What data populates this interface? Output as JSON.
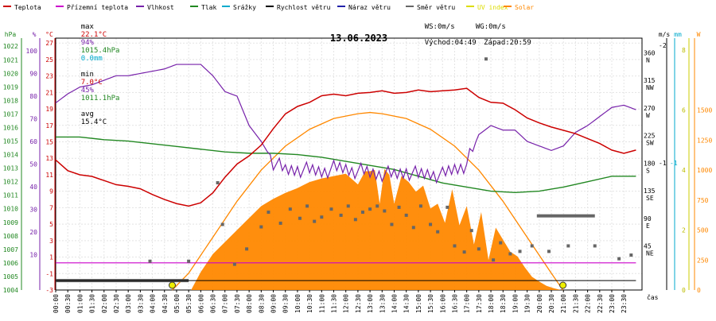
{
  "legend": [
    {
      "label": "Teplota",
      "color": "#cc0000"
    },
    {
      "label": "Přízemní teplota",
      "color": "#cc00cc"
    },
    {
      "label": "Vlhkost",
      "color": "#7722aa"
    },
    {
      "label": "Tlak",
      "color": "#228822"
    },
    {
      "label": "Srážky",
      "color": "#00aacc"
    },
    {
      "label": "Rychlost větru",
      "color": "#000000"
    },
    {
      "label": "Náraz větru",
      "color": "#2222aa"
    },
    {
      "label": "Směr větru",
      "color": "#666666"
    },
    {
      "label": "UV index",
      "color": "#dddd00"
    },
    {
      "label": "Solar",
      "color": "#ff8800"
    }
  ],
  "stats": {
    "max_label": "max",
    "min_label": "min",
    "avg_label": "avg",
    "max_temp": "22.1°C",
    "max_hum": "94%",
    "max_press": "1015.4hPa",
    "max_rain": "0.0mm",
    "min_temp": "7.0°C",
    "min_hum": "45%",
    "min_press": "1011.1hPa",
    "avg_temp": "15.4°C"
  },
  "wind": {
    "ws": "WS:0m/s",
    "wg": "WG:0m/s",
    "sunrise": "Východ:04:49",
    "sunset": "Západ:20:59"
  },
  "colors": {
    "temp": "#cc0000",
    "ground": "#cc00cc",
    "hum": "#7722aa",
    "press": "#228822",
    "rain": "#00aacc",
    "wind": "#000000",
    "gust": "#2222aa",
    "dir": "#666666",
    "uv": "#dddd00",
    "solar": "#ff8800"
  },
  "chart_data": {
    "type": "line",
    "title": "13.06.2023",
    "xlabel": "čas",
    "x_ticks": [
      "00:00",
      "00:30",
      "01:00",
      "01:30",
      "02:00",
      "02:30",
      "03:00",
      "03:30",
      "04:00",
      "04:30",
      "05:00",
      "05:30",
      "06:00",
      "06:30",
      "07:00",
      "07:30",
      "08:00",
      "08:30",
      "09:00",
      "09:30",
      "10:00",
      "10:30",
      "11:00",
      "11:30",
      "12:00",
      "12:30",
      "13:00",
      "13:30",
      "14:00",
      "14:30",
      "15:00",
      "15:30",
      "16:00",
      "16:30",
      "17:00",
      "17:30",
      "18:00",
      "18:30",
      "19:00",
      "19:30",
      "20:00",
      "20:30",
      "21:00",
      "21:30",
      "22:00",
      "22:30",
      "23:00",
      "23:30"
    ],
    "axes": {
      "hpa": {
        "label": "hPa",
        "ticks": [
          "1022",
          "1021",
          "1020",
          "1019",
          "1018",
          "1017",
          "1016",
          "1015",
          "1014",
          "1013",
          "1012",
          "1011",
          "1010",
          "1009",
          "1008",
          "1007",
          "1006",
          "1005",
          "1004"
        ],
        "range": [
          1004,
          1022.6
        ]
      },
      "pct": {
        "label": "%",
        "ticks": [
          "100",
          "90",
          "80",
          "70",
          "60",
          "50",
          "40",
          "30",
          "20",
          "10"
        ],
        "range": [
          -5.6,
          105.6
        ]
      },
      "celsius": {
        "label": "°C",
        "ticks": [
          "27",
          "25",
          "23",
          "21",
          "19",
          "17",
          "15",
          "13",
          "11",
          "9",
          "7",
          "5",
          "3",
          "1",
          "-1",
          "-3"
        ],
        "range": [
          -3,
          27.6
        ]
      },
      "direction": {
        "label": "°",
        "ticks": [
          "360",
          "315",
          "270",
          "225",
          "180",
          "135",
          "90",
          "45"
        ],
        "compass": [
          "N",
          "NW",
          "W",
          "SW",
          "S",
          "SE",
          "E",
          "NE"
        ],
        "range": [
          -27,
          384
        ]
      },
      "ms": {
        "label": "m/s",
        "ticks": [
          "2",
          "1"
        ],
        "range": [
          -0.08,
          2.06
        ]
      },
      "mm": {
        "label": "mm",
        "ticks": [
          "1"
        ],
        "range": [
          -0.08,
          2.06
        ]
      },
      "uv": {
        "label": "W",
        "ticks": [
          "8",
          "6",
          "4",
          "2",
          "0"
        ],
        "range": [
          0,
          8.4
        ]
      },
      "solar": {
        "label": "",
        "ticks": [
          "1500",
          "1250",
          "1000",
          "750",
          "500",
          "250",
          "0"
        ],
        "range": [
          0,
          2100
        ]
      }
    },
    "x_range": [
      0,
      24.25
    ],
    "series": [
      {
        "name": "Teplota",
        "axis": "celsius",
        "x": [
          0,
          0.5,
          1,
          1.5,
          2,
          2.5,
          3,
          3.5,
          4,
          4.5,
          5,
          5.5,
          6,
          6.5,
          7,
          7.5,
          8,
          8.5,
          9,
          9.5,
          10,
          10.5,
          11,
          11.5,
          12,
          12.5,
          13,
          13.5,
          14,
          14.5,
          15,
          15.5,
          16,
          16.5,
          17,
          17.5,
          18,
          18.5,
          19,
          19.5,
          20,
          20.5,
          21,
          21.5,
          22,
          22.5,
          23,
          23.5,
          24
        ],
        "y": [
          12.8,
          11.5,
          11.0,
          10.8,
          10.3,
          9.8,
          9.6,
          9.3,
          8.6,
          8.0,
          7.5,
          7.2,
          7.6,
          8.8,
          10.7,
          12.3,
          13.3,
          14.6,
          16.6,
          18.4,
          19.3,
          19.8,
          20.6,
          20.8,
          20.6,
          20.9,
          21.0,
          21.2,
          20.9,
          21.0,
          21.3,
          21.1,
          21.2,
          21.3,
          21.5,
          20.4,
          19.8,
          19.7,
          18.9,
          17.9,
          17.3,
          16.8,
          16.4,
          16.0,
          15.4,
          14.8,
          14.0,
          13.6,
          14.0
        ]
      },
      {
        "name": "Vlhkost",
        "axis": "pct",
        "x": [
          0,
          0.5,
          1,
          1.5,
          2,
          2.5,
          3,
          3.5,
          4,
          4.5,
          5,
          5.5,
          6,
          6.5,
          7,
          7.5,
          8,
          8.5,
          9,
          9.5,
          10,
          10.5,
          11,
          11.5,
          12,
          12.5,
          13,
          13.5,
          14,
          14.5,
          15,
          15.5,
          16,
          16.5,
          17,
          17.5,
          18,
          18.5,
          19,
          19.5,
          20,
          20.5,
          21,
          21.5,
          22,
          22.5,
          23,
          23.5,
          24
        ],
        "y": [
          77,
          81,
          84,
          85,
          87,
          89,
          89,
          90,
          91,
          92,
          94,
          94,
          94,
          89,
          82,
          80,
          67,
          60,
          51,
          47,
          48,
          47,
          47,
          48,
          48,
          47,
          46,
          46,
          45,
          47,
          45,
          46,
          45,
          48,
          50,
          63,
          67,
          65,
          65,
          60,
          58,
          56,
          58,
          64,
          67,
          71,
          75,
          76,
          74
        ]
      },
      {
        "name": "Tlak",
        "axis": "hpa",
        "x": [
          0,
          1,
          2,
          3,
          4,
          5,
          6,
          7,
          8,
          9,
          10,
          11,
          12,
          13,
          14,
          15,
          16,
          17,
          18,
          19,
          20,
          21,
          22,
          23,
          24
        ],
        "y": [
          1015.3,
          1015.3,
          1015.1,
          1015.0,
          1014.8,
          1014.6,
          1014.4,
          1014.2,
          1014.1,
          1014.1,
          1014.0,
          1013.8,
          1013.5,
          1013.2,
          1012.9,
          1012.4,
          1011.9,
          1011.6,
          1011.3,
          1011.2,
          1011.3,
          1011.6,
          1012.0,
          1012.4,
          1012.4
        ]
      },
      {
        "name": "Přízemní teplota",
        "axis": "celsius",
        "x": [
          0,
          24
        ],
        "y": [
          0.3,
          0.3
        ]
      },
      {
        "name": "Směr větru",
        "axis": "direction",
        "x": [
          3.9,
          5.5,
          6.7,
          6.9,
          7.4,
          7.9,
          8.5,
          8.8,
          9.3,
          9.7,
          10.1,
          10.4,
          10.7,
          11.0,
          11.4,
          11.8,
          12.1,
          12.4,
          12.7,
          13.0,
          13.3,
          13.6,
          13.9,
          14.2,
          14.5,
          14.8,
          15.1,
          15.5,
          15.8,
          16.2,
          16.5,
          16.9,
          17.2,
          17.5,
          17.8,
          18.1,
          18.4,
          18.8,
          19.2,
          19.7,
          20.4,
          21.2,
          22.3,
          23.3,
          23.8
        ],
        "y": [
          20,
          20,
          148,
          80,
          15,
          40,
          76,
          100,
          82,
          105,
          90,
          110,
          85,
          92,
          105,
          95,
          110,
          88,
          100,
          105,
          110,
          102,
          80,
          108,
          95,
          75,
          110,
          80,
          68,
          108,
          45,
          35,
          70,
          40,
          350,
          22,
          50,
          32,
          36,
          45,
          36,
          45,
          45,
          24,
          30
        ]
      },
      {
        "name": "Rychlost větru",
        "axis": "ms",
        "x": [
          0,
          2,
          4,
          5.5,
          6,
          6.5,
          7,
          8,
          9,
          10,
          11,
          12,
          13,
          14,
          15,
          16,
          17,
          18,
          19,
          20,
          21,
          22,
          23,
          24
        ],
        "y": [
          0,
          0,
          0,
          0,
          0,
          0,
          0,
          0,
          0,
          0,
          0,
          0,
          0,
          0,
          0,
          0,
          0,
          0,
          0,
          0,
          0,
          0,
          0,
          0
        ]
      },
      {
        "name": "Solar",
        "axis": "solar",
        "x": [
          5.6,
          6.0,
          6.5,
          7.0,
          7.5,
          8.0,
          8.5,
          9.0,
          9.5,
          10.0,
          10.5,
          11.0,
          11.5,
          12.0,
          12.5,
          12.8,
          13.0,
          13.2,
          13.4,
          13.6,
          13.8,
          14.0,
          14.3,
          14.6,
          14.9,
          15.2,
          15.5,
          15.8,
          16.1,
          16.4,
          16.7,
          17.0,
          17.3,
          17.6,
          17.9,
          18.2,
          18.5,
          18.8,
          19.1,
          19.4,
          19.7,
          20.0,
          20.3,
          20.6,
          20.9
        ],
        "y": [
          0,
          150,
          300,
          400,
          500,
          600,
          700,
          760,
          810,
          850,
          900,
          930,
          950,
          970,
          880,
          990,
          990,
          1000,
          720,
          1010,
          960,
          720,
          950,
          900,
          820,
          870,
          680,
          720,
          560,
          840,
          540,
          700,
          380,
          650,
          250,
          520,
          420,
          320,
          280,
          190,
          110,
          70,
          35,
          15,
          0
        ]
      },
      {
        "name": "Solar (clear sky)",
        "axis": "solar",
        "x": [
          4.82,
          5.5,
          6.5,
          7.5,
          8.5,
          9.5,
          10.5,
          11.5,
          12.5,
          13.0,
          13.5,
          14.5,
          15.5,
          16.5,
          17.5,
          18.5,
          19.5,
          20.5,
          20.98
        ],
        "y": [
          0,
          140,
          440,
          740,
          1000,
          1200,
          1340,
          1430,
          1470,
          1480,
          1470,
          1430,
          1340,
          1200,
          1000,
          740,
          440,
          140,
          0
        ]
      },
      {
        "name": "UV index",
        "axis": "uv",
        "x": [
          4.82,
          20.98
        ],
        "y": [
          0,
          0
        ]
      }
    ],
    "grid": true
  }
}
